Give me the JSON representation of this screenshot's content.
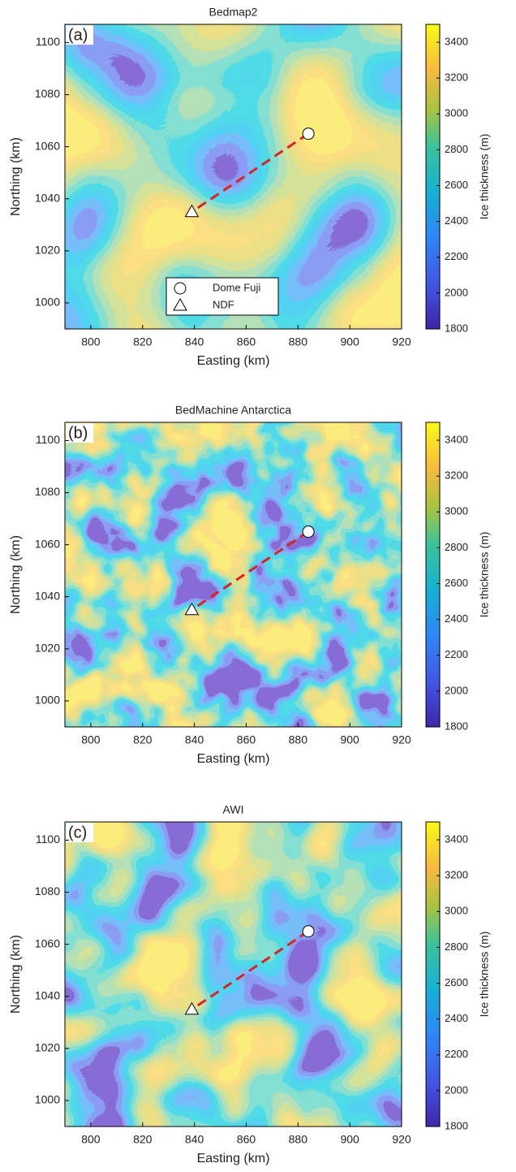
{
  "chart_data": [
    {
      "type": "contour",
      "title": "Bedmap2",
      "panel_label": "(a)",
      "xlabel": "Easting (km)",
      "ylabel": "Northing (km)",
      "colorbar_label": "Ice thickness (m)",
      "xlim": [
        790,
        920
      ],
      "ylim": [
        990,
        1107
      ],
      "xticks": [
        800,
        820,
        840,
        860,
        880,
        900,
        920
      ],
      "yticks": [
        1000,
        1020,
        1040,
        1060,
        1080,
        1100
      ],
      "clim": [
        1800,
        3500
      ],
      "cticks": [
        1800,
        2000,
        2200,
        2400,
        2600,
        2800,
        3000,
        3200,
        3400
      ],
      "legend": true,
      "series": [
        {
          "name": "Dome Fuji",
          "marker": "circle",
          "x": [
            884
          ],
          "y": [
            1065
          ]
        },
        {
          "name": "NDF",
          "marker": "triangle",
          "x": [
            839
          ],
          "y": [
            1035
          ]
        }
      ]
    },
    {
      "type": "contour",
      "title": "BedMachine Antarctica",
      "panel_label": "(b)",
      "xlabel": "Easting (km)",
      "ylabel": "Northing (km)",
      "colorbar_label": "Ice thickness (m)",
      "xlim": [
        790,
        920
      ],
      "ylim": [
        990,
        1107
      ],
      "xticks": [
        800,
        820,
        840,
        860,
        880,
        900,
        920
      ],
      "yticks": [
        1000,
        1020,
        1040,
        1060,
        1080,
        1100
      ],
      "clim": [
        1800,
        3500
      ],
      "cticks": [
        1800,
        2000,
        2200,
        2400,
        2600,
        2800,
        3000,
        3200,
        3400
      ],
      "legend": false,
      "series": [
        {
          "name": "Dome Fuji",
          "marker": "circle",
          "x": [
            884
          ],
          "y": [
            1065
          ]
        },
        {
          "name": "NDF",
          "marker": "triangle",
          "x": [
            839
          ],
          "y": [
            1035
          ]
        }
      ]
    },
    {
      "type": "contour",
      "title": "AWI",
      "panel_label": "(c)",
      "xlabel": "Easting (km)",
      "ylabel": "Northing (km)",
      "colorbar_label": "Ice thickness (m)",
      "xlim": [
        790,
        920
      ],
      "ylim": [
        990,
        1107
      ],
      "xticks": [
        800,
        820,
        840,
        860,
        880,
        900,
        920
      ],
      "yticks": [
        1000,
        1020,
        1040,
        1060,
        1080,
        1100
      ],
      "clim": [
        1800,
        3500
      ],
      "cticks": [
        1800,
        2000,
        2200,
        2400,
        2600,
        2800,
        3000,
        3200,
        3400
      ],
      "legend": false,
      "series": [
        {
          "name": "Dome Fuji",
          "marker": "circle",
          "x": [
            884
          ],
          "y": [
            1065
          ]
        },
        {
          "name": "NDF",
          "marker": "triangle",
          "x": [
            839
          ],
          "y": [
            1035
          ]
        }
      ]
    }
  ]
}
